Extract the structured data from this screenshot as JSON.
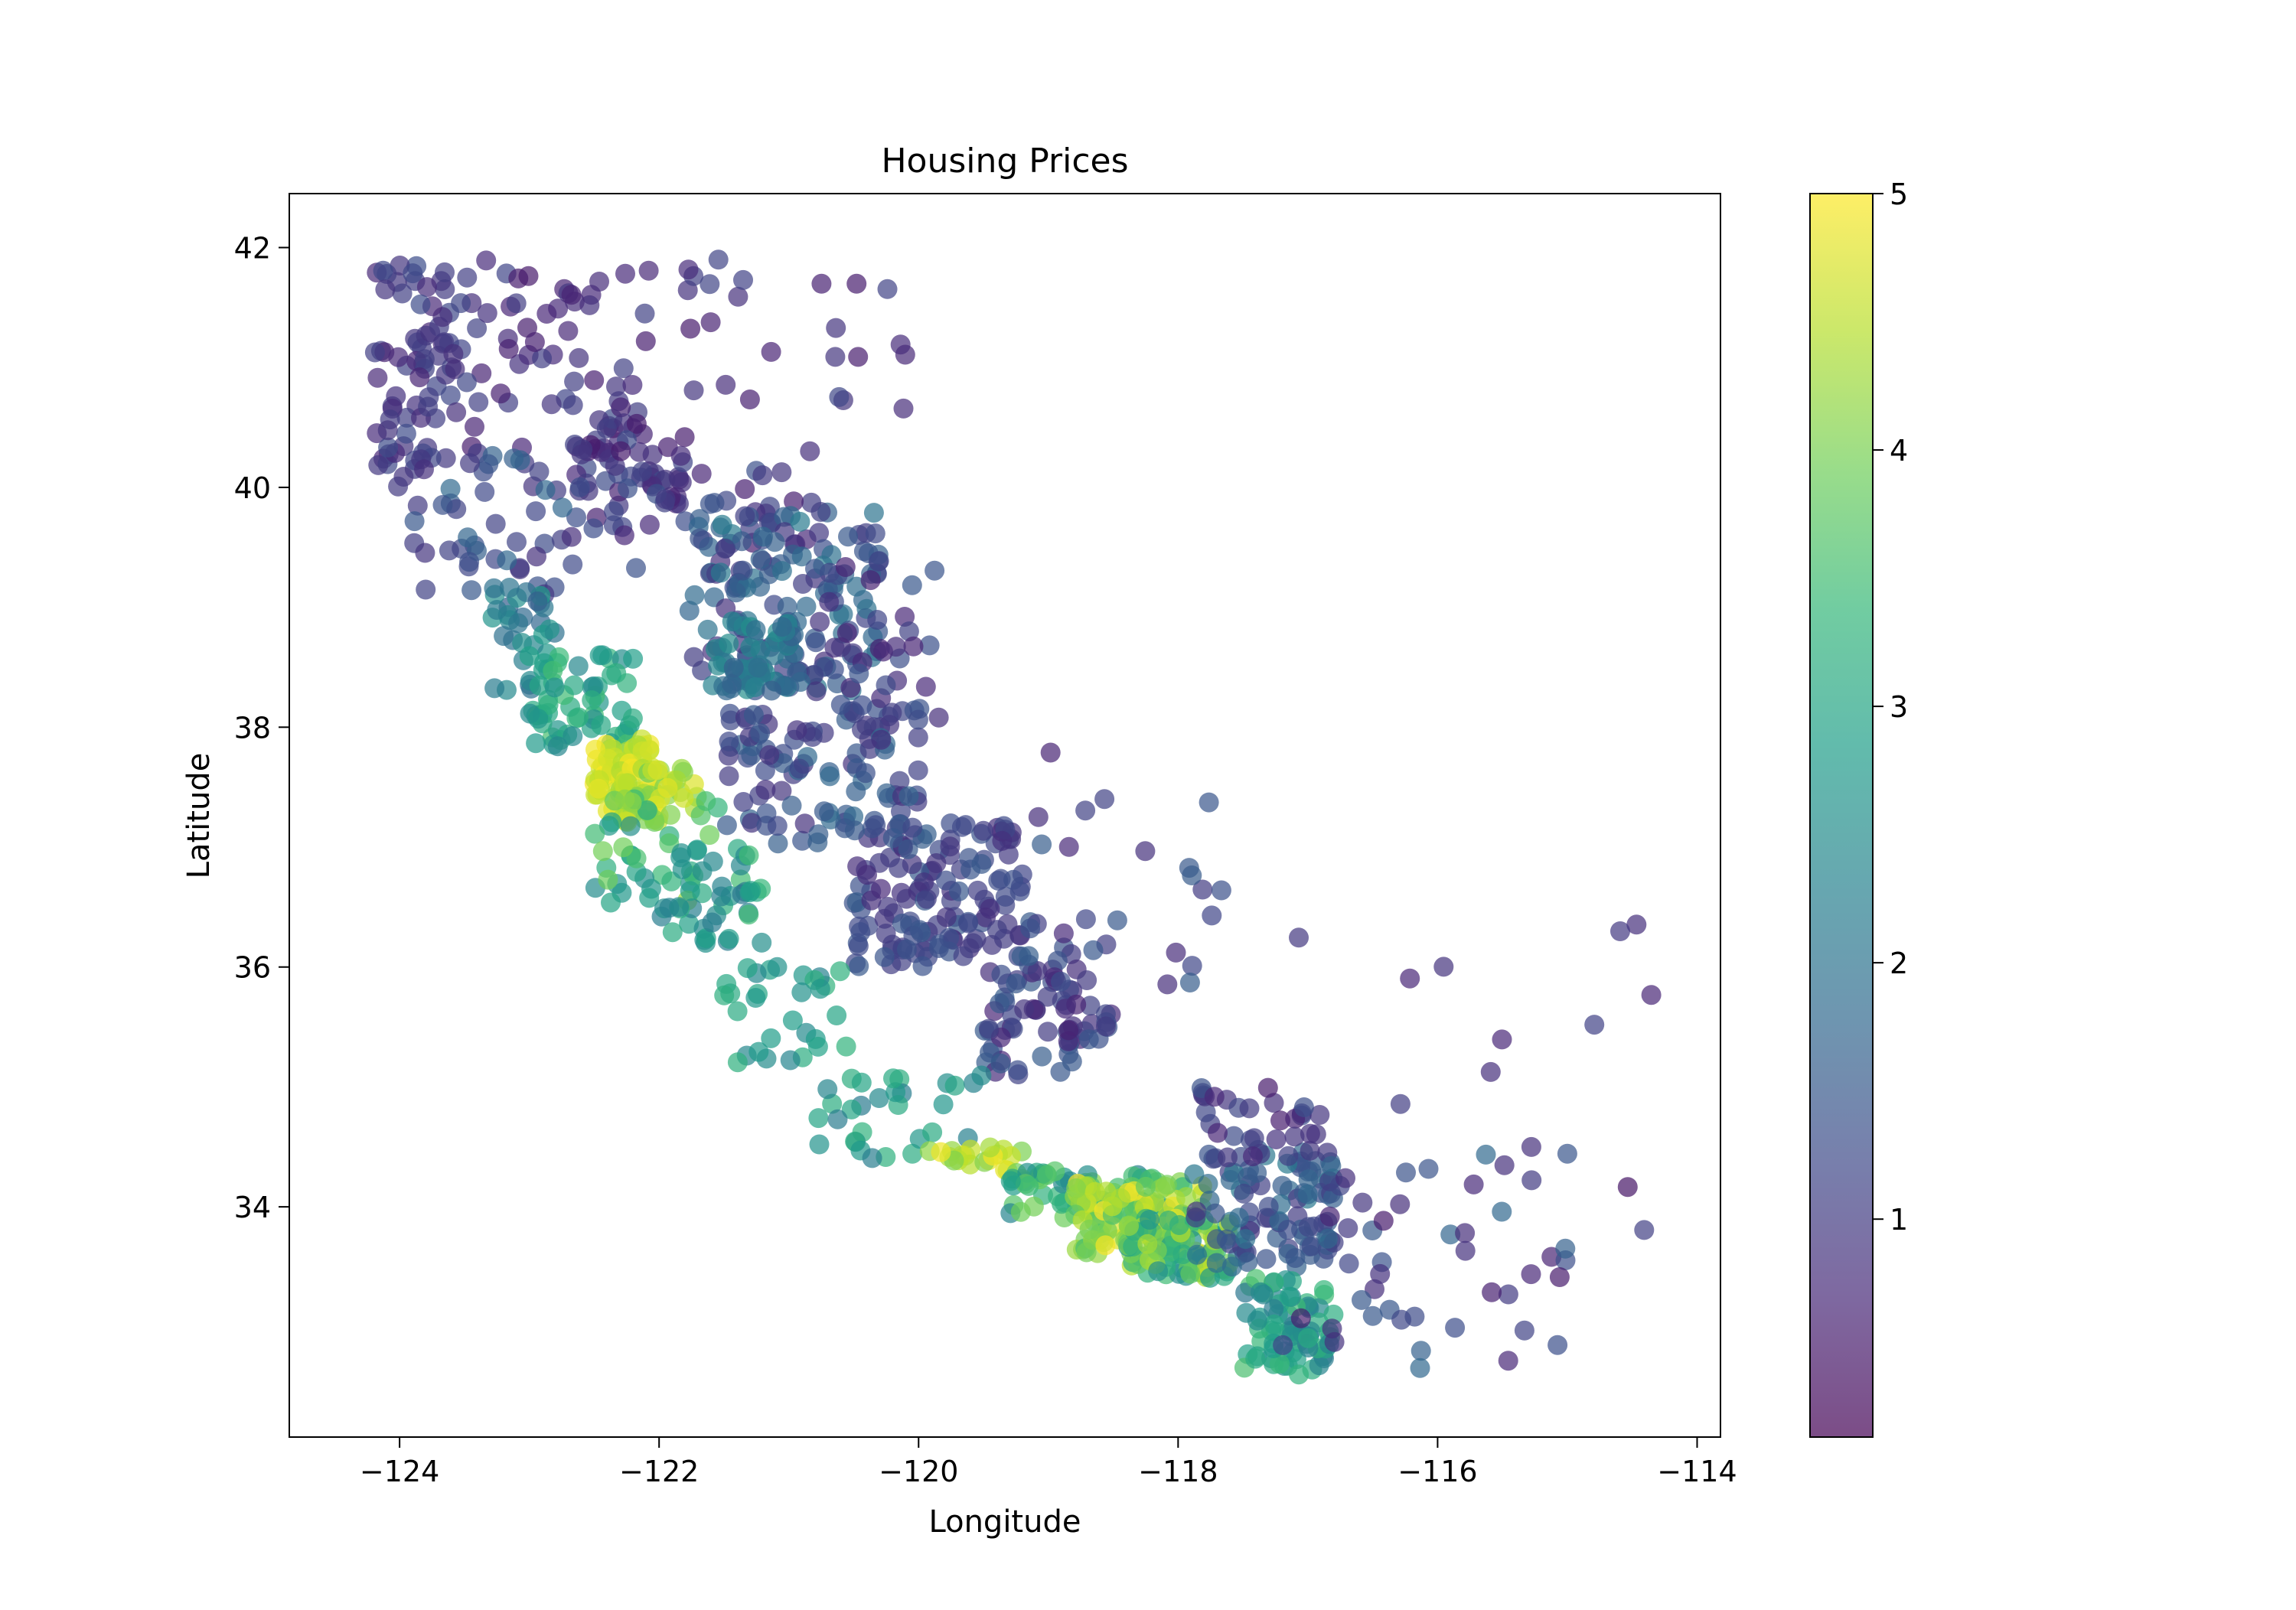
{
  "chart_data": {
    "type": "scatter",
    "title": "Housing Prices",
    "xlabel": "Longitude",
    "ylabel": "Latitude",
    "xlim": [
      -124.85,
      -113.82
    ],
    "ylim": [
      32.08,
      42.45
    ],
    "x_ticks": [
      -124,
      -122,
      -120,
      -118,
      -116,
      -114
    ],
    "x_tick_labels": [
      "−124",
      "−122",
      "−120",
      "−118",
      "−116",
      "−114"
    ],
    "y_ticks": [
      34,
      36,
      38,
      40,
      42
    ],
    "y_tick_labels": [
      "34",
      "36",
      "38",
      "40",
      "42"
    ],
    "grid": false,
    "legend": "none",
    "marker_alpha": 0.7,
    "colormap": "viridis",
    "colorbar": {
      "vmin": 0.15,
      "vmax": 5.0,
      "ticks": [
        1,
        2,
        3,
        4,
        5
      ],
      "tick_labels": [
        "1",
        "2",
        "3",
        "4",
        "5"
      ],
      "colors": [
        "#440154",
        "#482878",
        "#3e4989",
        "#31688e",
        "#26828e",
        "#1f9e89",
        "#35b779",
        "#6ece58",
        "#b5de2b",
        "#fde725"
      ]
    },
    "regions": [
      {
        "lon": [
          -124.2,
          -123.6
        ],
        "lat": [
          40.0,
          41.9
        ],
        "value": [
          0.6,
          1.3
        ],
        "count": 70
      },
      {
        "lon": [
          -123.6,
          -122.3
        ],
        "lat": [
          40.3,
          41.9
        ],
        "value": [
          0.5,
          1.2
        ],
        "count": 55
      },
      {
        "lon": [
          -122.3,
          -120.1
        ],
        "lat": [
          40.6,
          41.9
        ],
        "value": [
          0.5,
          1.2
        ],
        "count": 30
      },
      {
        "lon": [
          -122.6,
          -121.8
        ],
        "lat": [
          39.6,
          40.7
        ],
        "value": [
          0.5,
          1.3
        ],
        "count": 50
      },
      {
        "lon": [
          -123.9,
          -122.6
        ],
        "lat": [
          39.0,
          40.3
        ],
        "value": [
          0.8,
          1.8
        ],
        "count": 50
      },
      {
        "lon": [
          -122.7,
          -120.8
        ],
        "lat": [
          39.3,
          40.5
        ],
        "value": [
          0.5,
          1.4
        ],
        "count": 40
      },
      {
        "lon": [
          -121.8,
          -120.3
        ],
        "lat": [
          38.3,
          39.8
        ],
        "value": [
          0.8,
          2.2
        ],
        "count": 140
      },
      {
        "lon": [
          -121.6,
          -120.9
        ],
        "lat": [
          38.3,
          38.9
        ],
        "value": [
          1.5,
          2.6
        ],
        "count": 50
      },
      {
        "lon": [
          -120.9,
          -119.8
        ],
        "lat": [
          38.0,
          39.4
        ],
        "value": [
          0.6,
          1.5
        ],
        "count": 40
      },
      {
        "lon": [
          -121.5,
          -120.0
        ],
        "lat": [
          37.0,
          38.2
        ],
        "value": [
          0.8,
          1.8
        ],
        "count": 100
      },
      {
        "lon": [
          -120.5,
          -119.2
        ],
        "lat": [
          36.0,
          37.2
        ],
        "value": [
          0.7,
          1.6
        ],
        "count": 130
      },
      {
        "lon": [
          -119.5,
          -118.5
        ],
        "lat": [
          35.1,
          36.4
        ],
        "value": [
          0.6,
          1.6
        ],
        "count": 80
      },
      {
        "lon": [
          -119.4,
          -117.6
        ],
        "lat": [
          35.8,
          38.1
        ],
        "value": [
          0.6,
          1.6
        ],
        "count": 25
      },
      {
        "lon": [
          -123.3,
          -122.8
        ],
        "lat": [
          38.3,
          39.2
        ],
        "value": [
          1.6,
          2.8
        ],
        "count": 30
      },
      {
        "lon": [
          -123.0,
          -122.2
        ],
        "lat": [
          37.8,
          38.6
        ],
        "value": [
          2.3,
          3.6
        ],
        "count": 60
      },
      {
        "lon": [
          -122.5,
          -122.0
        ],
        "lat": [
          37.3,
          37.9
        ],
        "value": [
          4.3,
          5.0
        ],
        "count": 80
      },
      {
        "lon": [
          -122.3,
          -121.7
        ],
        "lat": [
          37.2,
          37.7
        ],
        "value": [
          3.8,
          5.0
        ],
        "count": 40
      },
      {
        "lon": [
          -122.5,
          -121.5
        ],
        "lat": [
          36.5,
          37.4
        ],
        "value": [
          2.5,
          4.3
        ],
        "count": 40
      },
      {
        "lon": [
          -122.0,
          -121.2
        ],
        "lat": [
          36.2,
          37.0
        ],
        "value": [
          2.0,
          3.5
        ],
        "count": 40
      },
      {
        "lon": [
          -121.5,
          -120.5
        ],
        "lat": [
          35.2,
          36.0
        ],
        "value": [
          2.2,
          3.3
        ],
        "count": 30
      },
      {
        "lon": [
          -120.8,
          -119.5
        ],
        "lat": [
          34.4,
          35.1
        ],
        "value": [
          2.0,
          3.3
        ],
        "count": 30
      },
      {
        "lon": [
          -120.0,
          -119.2
        ],
        "lat": [
          34.3,
          34.5
        ],
        "value": [
          4.0,
          5.0
        ],
        "count": 20
      },
      {
        "lon": [
          -119.3,
          -117.9
        ],
        "lat": [
          33.9,
          34.3
        ],
        "value": [
          2.2,
          4.2
        ],
        "count": 60
      },
      {
        "lon": [
          -118.8,
          -117.8
        ],
        "lat": [
          33.6,
          34.2
        ],
        "value": [
          3.5,
          5.0
        ],
        "count": 110
      },
      {
        "lon": [
          -118.4,
          -117.6
        ],
        "lat": [
          33.4,
          33.9
        ],
        "value": [
          2.5,
          4.6
        ],
        "count": 80
      },
      {
        "lon": [
          -117.9,
          -116.8
        ],
        "lat": [
          33.5,
          34.5
        ],
        "value": [
          0.8,
          2.2
        ],
        "count": 90
      },
      {
        "lon": [
          -117.9,
          -116.9
        ],
        "lat": [
          34.4,
          35.0
        ],
        "value": [
          0.5,
          1.4
        ],
        "count": 30
      },
      {
        "lon": [
          -117.5,
          -116.8
        ],
        "lat": [
          32.6,
          33.4
        ],
        "value": [
          2.0,
          3.6
        ],
        "count": 70
      },
      {
        "lon": [
          -117.2,
          -115.0
        ],
        "lat": [
          32.6,
          34.5
        ],
        "value": [
          0.5,
          1.8
        ],
        "count": 45
      },
      {
        "lon": [
          -117.2,
          -114.3
        ],
        "lat": [
          33.5,
          36.5
        ],
        "value": [
          0.3,
          1.2
        ],
        "count": 20
      }
    ]
  }
}
